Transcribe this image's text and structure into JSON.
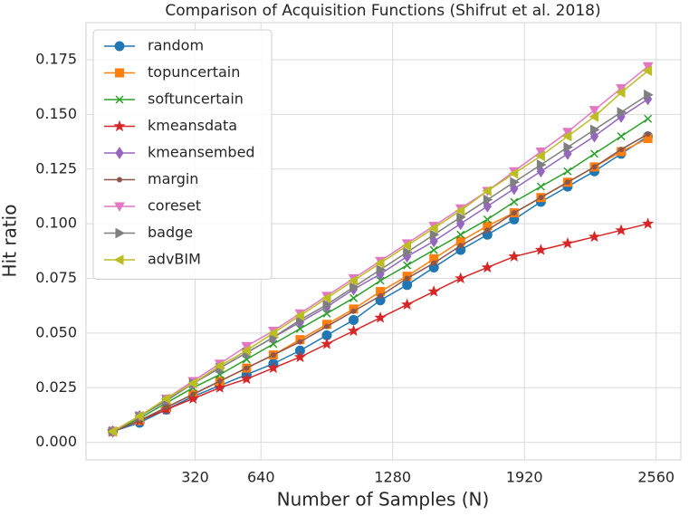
{
  "chart_data": {
    "type": "line",
    "title": "Comparison of Acquisition Functions (Shifrut et al. 2018)",
    "x_label": "Number of Samples (N)",
    "y_label": "Hit ratio",
    "x": [
      -80,
      50,
      180,
      310,
      440,
      570,
      700,
      830,
      960,
      1090,
      1220,
      1350,
      1480,
      1610,
      1740,
      1870,
      2000,
      2130,
      2260,
      2390,
      2520
    ],
    "xlim": [
      -210,
      2680
    ],
    "xticks": [
      320,
      640,
      1280,
      1920,
      2560
    ],
    "ylim": [
      -0.008,
      0.192
    ],
    "yticks": [
      {
        "value": 0,
        "label": "0.000"
      },
      {
        "value": 0.025,
        "label": "0.025"
      },
      {
        "value": 0.05,
        "label": "0.050"
      },
      {
        "value": 0.075,
        "label": "0.075"
      },
      {
        "value": 0.1,
        "label": "0.100"
      },
      {
        "value": 0.125,
        "label": "0.125"
      },
      {
        "value": 0.15,
        "label": "0.150"
      },
      {
        "value": 0.175,
        "label": "0.175"
      }
    ],
    "grid": true,
    "legend": "upper left",
    "series": [
      {
        "name": "random",
        "color": "#1f77b4",
        "marker": "o",
        "values": [
          0.005,
          0.009,
          0.015,
          0.021,
          0.026,
          0.031,
          0.036,
          0.042,
          0.049,
          0.056,
          0.065,
          0.072,
          0.08,
          0.088,
          0.095,
          0.102,
          0.11,
          0.117,
          0.124,
          0.132,
          0.14
        ]
      },
      {
        "name": "topuncertain",
        "color": "#ff7f0e",
        "marker": "s",
        "values": [
          0.005,
          0.01,
          0.016,
          0.022,
          0.028,
          0.034,
          0.04,
          0.047,
          0.054,
          0.061,
          0.069,
          0.076,
          0.084,
          0.092,
          0.099,
          0.105,
          0.112,
          0.119,
          0.126,
          0.133,
          0.139
        ]
      },
      {
        "name": "softuncertain",
        "color": "#2ca02c",
        "marker": "x",
        "values": [
          0.005,
          0.011,
          0.018,
          0.025,
          0.031,
          0.038,
          0.045,
          0.052,
          0.059,
          0.066,
          0.074,
          0.081,
          0.088,
          0.095,
          0.102,
          0.11,
          0.117,
          0.124,
          0.132,
          0.14,
          0.148
        ]
      },
      {
        "name": "kmeansdata",
        "color": "#d62728",
        "marker": "*",
        "values": [
          0.005,
          0.01,
          0.015,
          0.02,
          0.025,
          0.029,
          0.034,
          0.039,
          0.045,
          0.051,
          0.057,
          0.063,
          0.069,
          0.075,
          0.08,
          0.085,
          0.088,
          0.091,
          0.094,
          0.097,
          0.1
        ]
      },
      {
        "name": "kmeansembed",
        "color": "#9467bd",
        "marker": "d",
        "values": [
          0.005,
          0.012,
          0.019,
          0.027,
          0.034,
          0.041,
          0.048,
          0.055,
          0.062,
          0.07,
          0.077,
          0.085,
          0.092,
          0.1,
          0.108,
          0.116,
          0.124,
          0.132,
          0.14,
          0.149,
          0.157
        ]
      },
      {
        "name": "margin",
        "color": "#8c564b",
        "marker": ".",
        "values": [
          0.005,
          0.01,
          0.016,
          0.022,
          0.028,
          0.034,
          0.04,
          0.046,
          0.053,
          0.06,
          0.067,
          0.075,
          0.082,
          0.09,
          0.097,
          0.105,
          0.112,
          0.119,
          0.126,
          0.134,
          0.141
        ]
      },
      {
        "name": "coreset",
        "color": "#e377c2",
        "marker": "v",
        "values": [
          0.005,
          0.012,
          0.02,
          0.028,
          0.036,
          0.044,
          0.051,
          0.059,
          0.067,
          0.075,
          0.083,
          0.091,
          0.099,
          0.107,
          0.115,
          0.124,
          0.133,
          0.142,
          0.152,
          0.162,
          0.172
        ]
      },
      {
        "name": "badge",
        "color": "#7f7f7f",
        "marker": ">",
        "values": [
          0.005,
          0.012,
          0.019,
          0.027,
          0.034,
          0.041,
          0.048,
          0.056,
          0.063,
          0.071,
          0.079,
          0.087,
          0.095,
          0.103,
          0.111,
          0.119,
          0.127,
          0.135,
          0.143,
          0.151,
          0.159
        ]
      },
      {
        "name": "advBIM",
        "color": "#bcbd22",
        "marker": "<",
        "values": [
          0.005,
          0.012,
          0.02,
          0.027,
          0.035,
          0.042,
          0.05,
          0.058,
          0.066,
          0.074,
          0.082,
          0.09,
          0.098,
          0.106,
          0.115,
          0.123,
          0.131,
          0.14,
          0.149,
          0.16,
          0.17
        ]
      }
    ]
  }
}
